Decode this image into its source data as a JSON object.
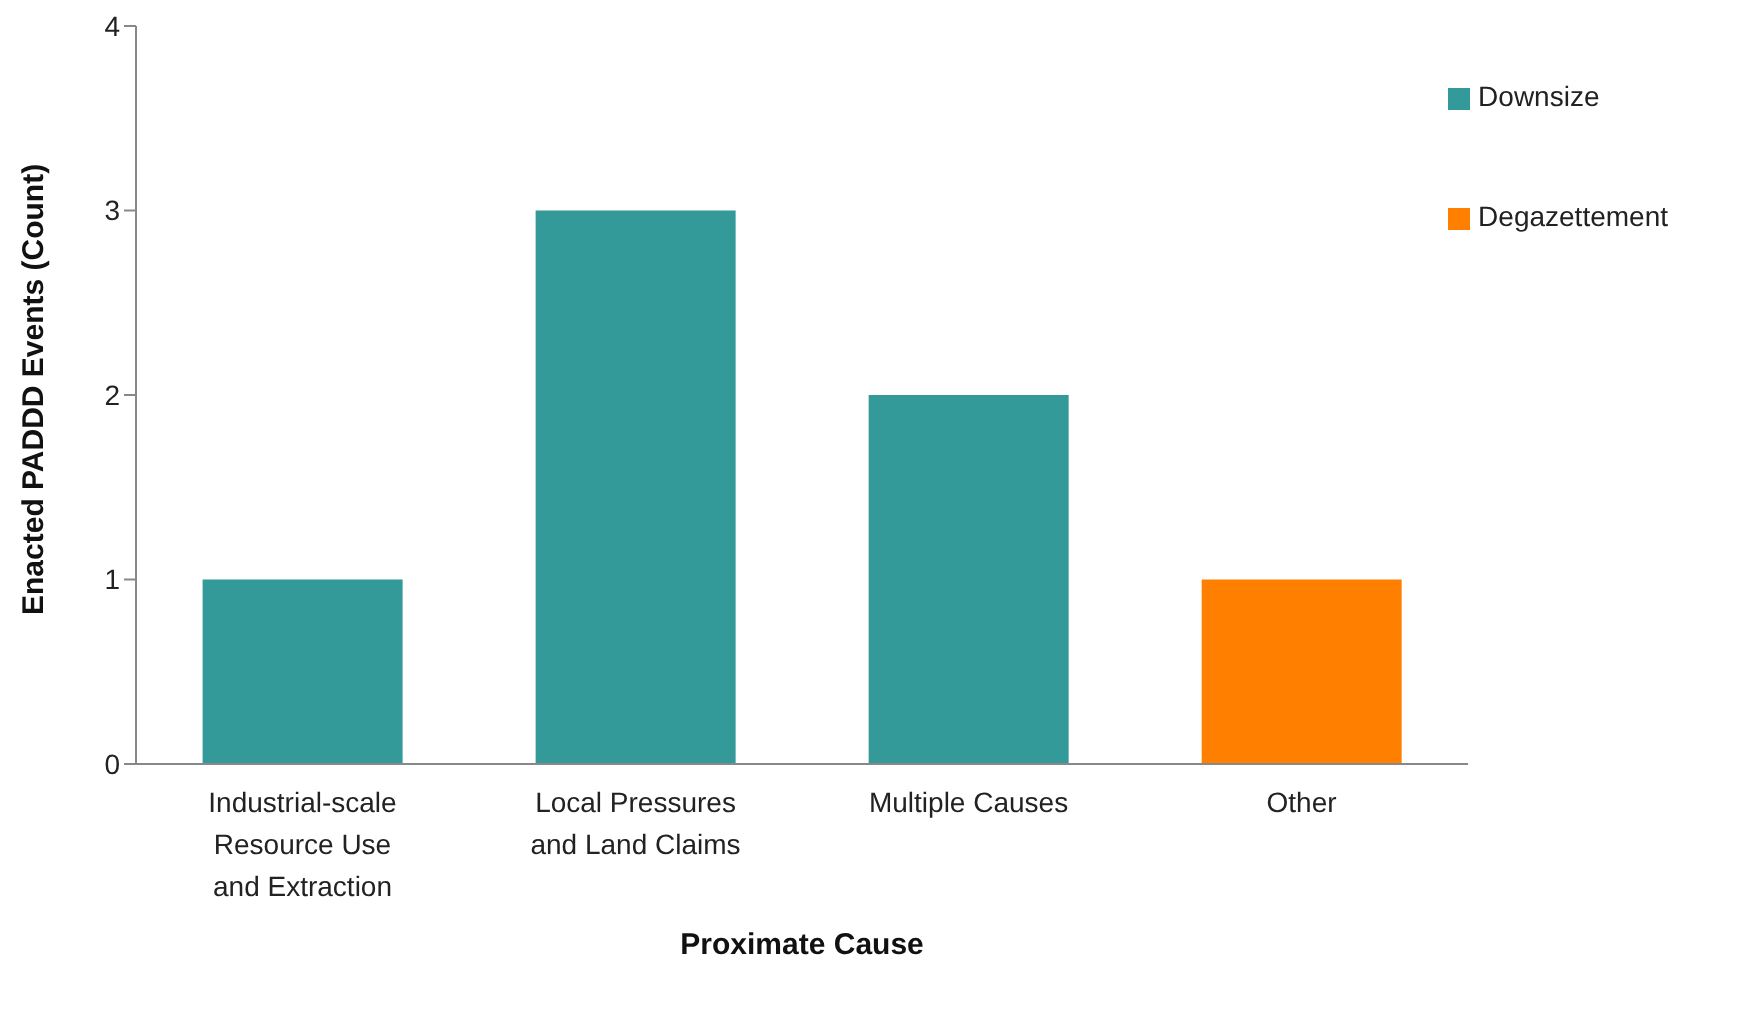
{
  "chart_data": {
    "type": "bar",
    "stacked": true,
    "xlabel": "Proximate Cause",
    "ylabel": "Enacted PADDD Events (Count)",
    "categories": [
      "Industrial-scale Resource Use and Extraction",
      "Local Pressures and Land Claims",
      "Multiple Causes",
      "Other"
    ],
    "series": [
      {
        "name": "Downsize",
        "color": "#339a99",
        "values": [
          1,
          3,
          2,
          null
        ]
      },
      {
        "name": "Degazettement",
        "color": "#ff8000",
        "values": [
          null,
          null,
          null,
          1
        ]
      }
    ],
    "ylim": [
      0,
      4
    ],
    "yticks": [
      0,
      1,
      2,
      3,
      4
    ],
    "legend": "top right"
  }
}
